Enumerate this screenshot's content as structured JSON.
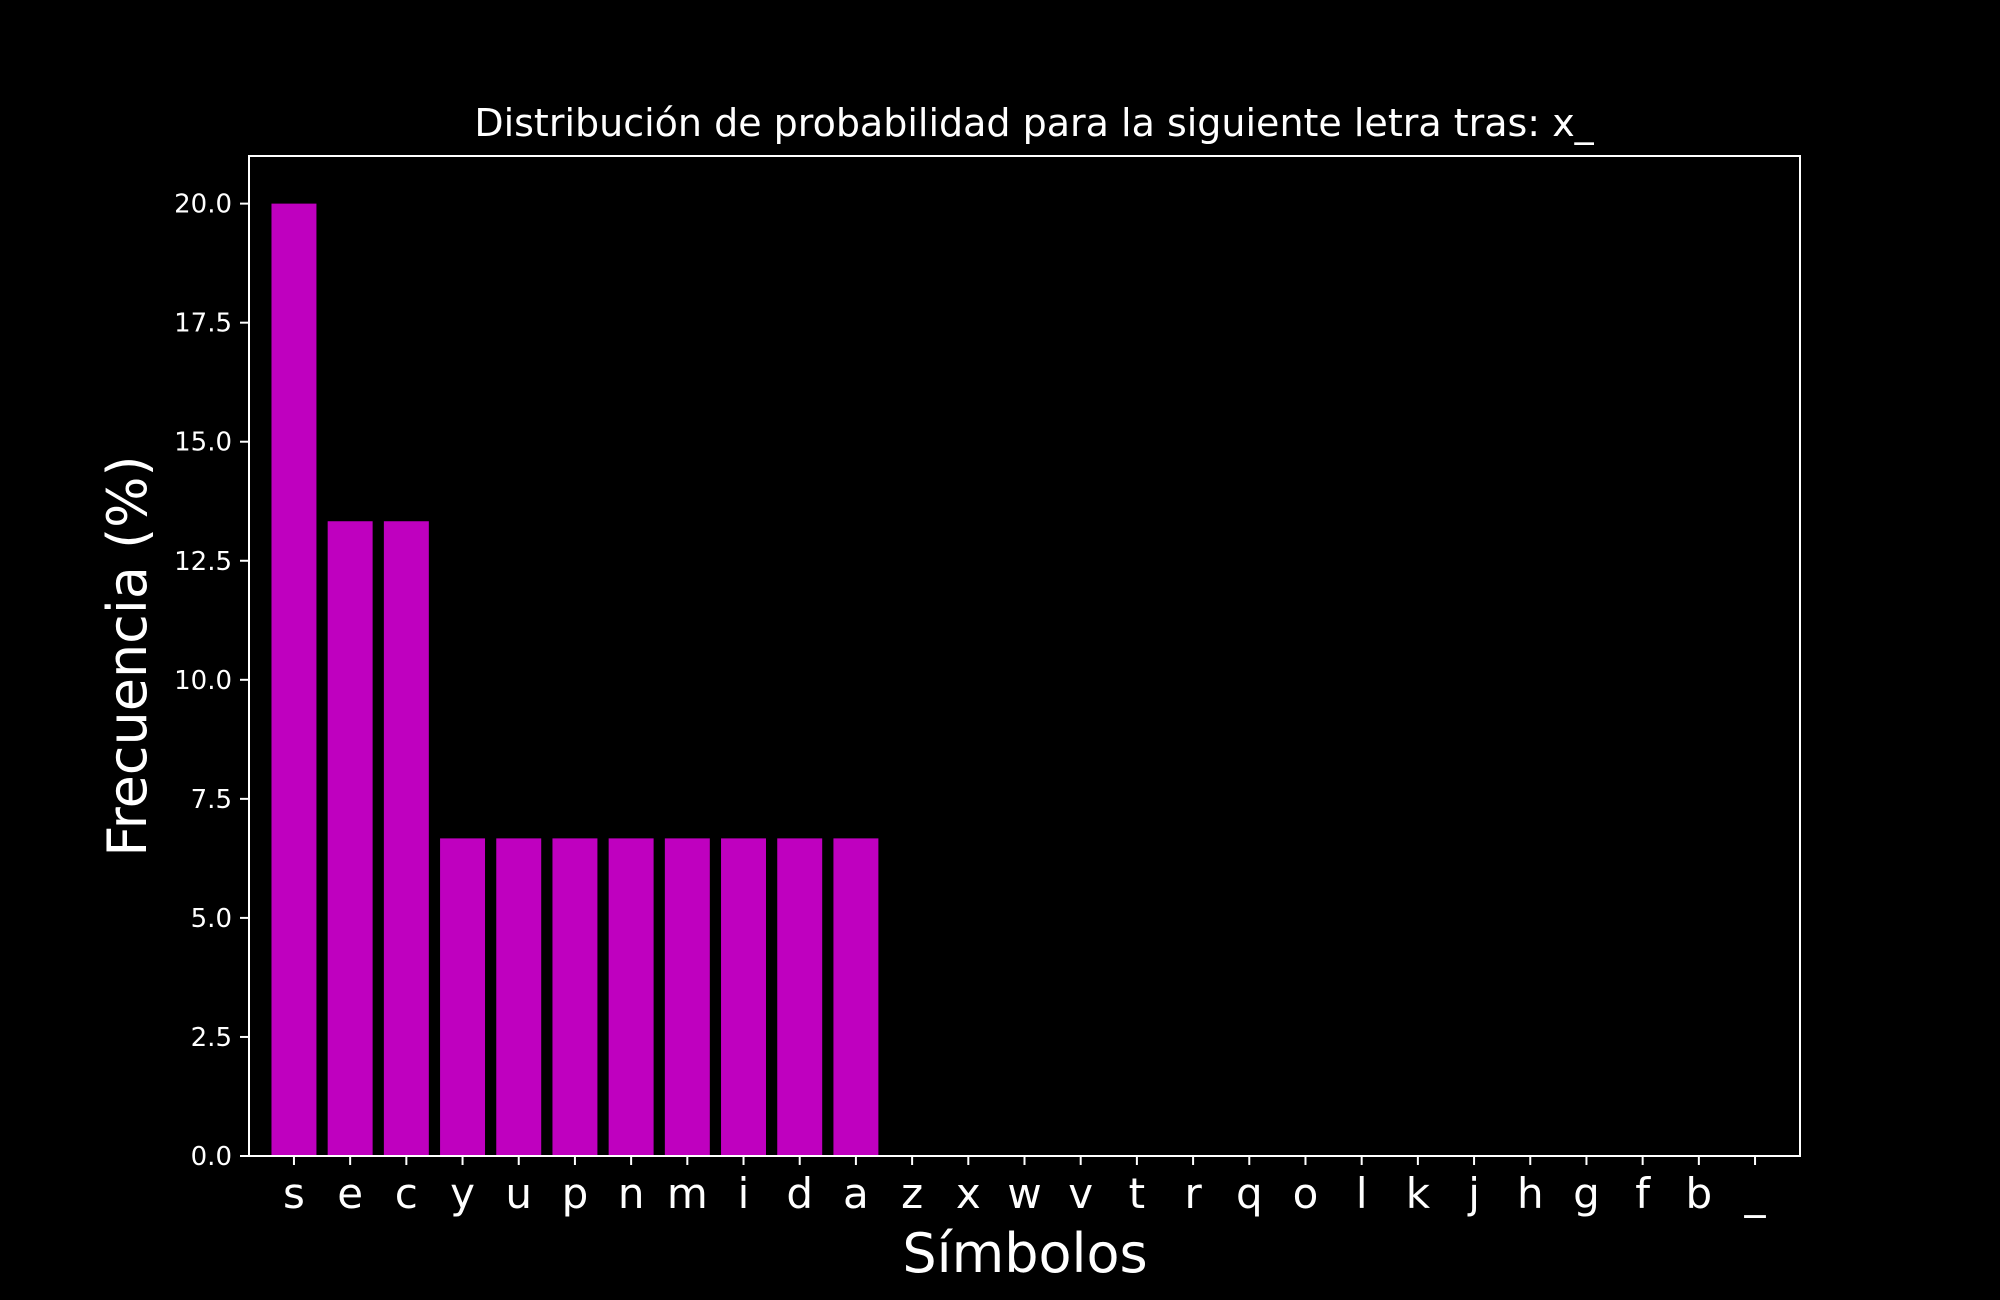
{
  "chart_data": {
    "type": "bar",
    "title": "Distribución de probabilidad para la siguiente letra tras: x_",
    "xlabel": "Símbolos",
    "ylabel": "Frecuencia (%)",
    "categories": [
      "s",
      "e",
      "c",
      "y",
      "u",
      "p",
      "n",
      "m",
      "i",
      "d",
      "a",
      "z",
      "x",
      "w",
      "v",
      "t",
      "r",
      "q",
      "o",
      "l",
      "k",
      "j",
      "h",
      "g",
      "f",
      "b",
      "_"
    ],
    "values": [
      20.0,
      13.33,
      13.33,
      6.67,
      6.67,
      6.67,
      6.67,
      6.67,
      6.67,
      6.67,
      6.67,
      0,
      0,
      0,
      0,
      0,
      0,
      0,
      0,
      0,
      0,
      0,
      0,
      0,
      0,
      0,
      0
    ],
    "ylim": [
      0,
      21
    ],
    "yticks": [
      "0.0",
      "2.5",
      "5.0",
      "7.5",
      "10.0",
      "12.5",
      "15.0",
      "17.5",
      "20.0"
    ],
    "grid": false,
    "colors": {
      "bar": "#bf00bf",
      "background": "#000000",
      "foreground": "#ffffff"
    }
  }
}
